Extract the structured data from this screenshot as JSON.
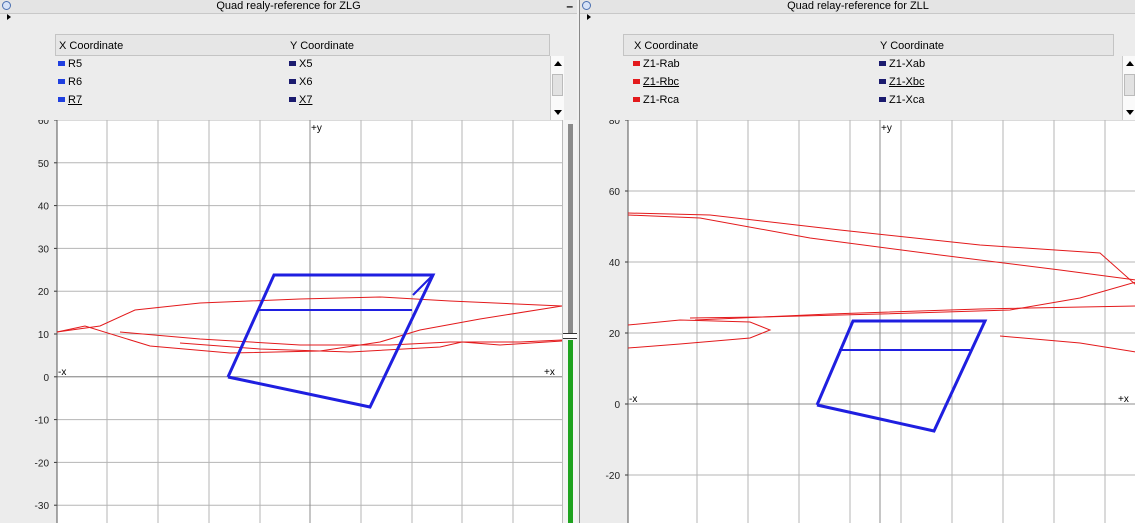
{
  "panels": [
    {
      "title": "Quad realy-reference for ZLG",
      "minimize_glyph": "–",
      "legend": {
        "x_header": "X Coordinate",
        "y_header": "Y Coordinate",
        "rows": [
          {
            "x": "R5",
            "y": "X5"
          },
          {
            "x": "R6",
            "y": "X6"
          },
          {
            "x": "R7",
            "y": "X7"
          }
        ],
        "x_color": "#1f3fe0",
        "y_color": "#1a1a6e"
      },
      "chart_data": {
        "type": "scatter",
        "ylim": [
          -33,
          60
        ],
        "xlim": [
          -60,
          60
        ],
        "y_ticks": [
          "60",
          "50",
          "40",
          "30",
          "20",
          "10",
          "0",
          "-10",
          "-20",
          "-30"
        ],
        "x_neg_label": "-x",
        "x_pos_label": "+x",
        "y_pos_label": "+y",
        "series": [
          {
            "color": "#e31a1c",
            "points": [
              [
                -60,
                11
              ],
              [
                -45,
                12
              ],
              [
                -25,
                14
              ],
              [
                0,
                16
              ],
              [
                30,
                18
              ],
              [
                60,
                16
              ]
            ]
          },
          {
            "color": "#1f1fe0",
            "points": [
              [
                -19,
                0
              ],
              [
                -9,
                24
              ],
              [
                27,
                24
              ],
              [
                13,
                -6
              ],
              [
                -19,
                0
              ]
            ]
          }
        ]
      }
    },
    {
      "title": "Quad relay-reference for ZLL",
      "legend": {
        "x_header": "X Coordinate",
        "y_header": "Y Coordinate",
        "rows": [
          {
            "x": "Z1-Rab",
            "y": "Z1-Xab"
          },
          {
            "x": "Z1-Rbc",
            "y": "Z1-Xbc"
          },
          {
            "x": "Z1-Rca",
            "y": "Z1-Xca"
          }
        ],
        "x_color": "#e31a1c",
        "y_color": "#1a1a6e"
      },
      "chart_data": {
        "type": "scatter",
        "ylim": [
          -33,
          80
        ],
        "xlim": [
          -60,
          60
        ],
        "y_ticks": [
          "80",
          "60",
          "40",
          "20",
          "0",
          "-20"
        ],
        "x_neg_label": "-x",
        "x_pos_label": "+x",
        "y_pos_label": "+y",
        "series": [
          {
            "color": "#e31a1c",
            "points": [
              [
                -60,
                53
              ],
              [
                -20,
                52
              ],
              [
                20,
                47
              ],
              [
                60,
                44
              ]
            ]
          },
          {
            "color": "#1f1fe0",
            "points": [
              [
                -20,
                1
              ],
              [
                -10,
                24
              ],
              [
                20,
                24
              ],
              [
                10,
                -6
              ],
              [
                -20,
                1
              ]
            ]
          }
        ]
      }
    }
  ]
}
